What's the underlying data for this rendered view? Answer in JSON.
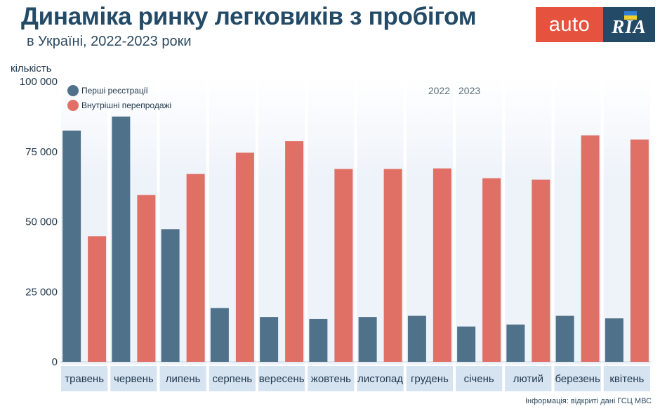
{
  "header": {
    "title": "Динаміка ринку легковиків з пробігом",
    "subtitle": "в Україні, 2022-2023 роки"
  },
  "logo": {
    "left_text": "auto",
    "right_text": "RIA",
    "colors": {
      "left_bg": "#e5533f",
      "right_bg": "#234a66",
      "flag_blue": "#2f7fd6",
      "flag_yellow": "#f2d02b"
    }
  },
  "source_note": "Інформація: відкриті дані ГСЦ МВС",
  "chart_data": {
    "type": "bar",
    "ylabel": "кількість",
    "ylim": [
      0,
      100000
    ],
    "yticks": [
      0,
      25000,
      50000,
      75000,
      100000
    ],
    "ytick_labels": [
      "0",
      "25 000",
      "50 000",
      "75 000",
      "100 000"
    ],
    "categories": [
      "травень",
      "червень",
      "липень",
      "серпень",
      "вересень",
      "жовтень",
      "листопад",
      "грудень",
      "січень",
      "лютий",
      "березень",
      "квітень"
    ],
    "year_labels": [
      "2022",
      "2023"
    ],
    "year_boundary_after_index": 7,
    "legend_position": "top-left",
    "grid": false,
    "series": [
      {
        "name": "Перші реєстрації",
        "color": "#4f7189",
        "values": [
          82500,
          87500,
          47300,
          19200,
          16000,
          15300,
          16000,
          16400,
          12600,
          13300,
          16400,
          15500
        ]
      },
      {
        "name": "Внутрішні перепродажі",
        "color": "#e06f65",
        "values": [
          44800,
          59500,
          67000,
          74600,
          78700,
          68800,
          68800,
          69000,
          65500,
          65000,
          80800,
          79300
        ]
      }
    ],
    "colors": {
      "column_bg": "#eef3fa",
      "category_band": "#d6e4f2",
      "axis_text": "#233a4d"
    }
  }
}
